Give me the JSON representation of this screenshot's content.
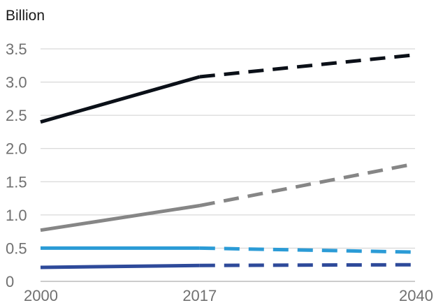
{
  "chart_data": {
    "type": "line",
    "unit_label": "Billion",
    "x_ticks": [
      "2000",
      "2017",
      "2040"
    ],
    "y_ticks": [
      "0",
      "0.5",
      "1.0",
      "1.5",
      "2.0",
      "2.5",
      "3.0",
      "3.5"
    ],
    "xlim": [
      2000,
      2040
    ],
    "ylim": [
      0,
      3.5
    ],
    "grid": "horizontal",
    "historical_end_x": 2017,
    "projection_style": "dashed",
    "series": [
      {
        "color": "#0b1018",
        "values": [
          [
            2000,
            2.4
          ],
          [
            2017,
            3.08
          ],
          [
            2040,
            3.41
          ]
        ]
      },
      {
        "color": "#868686",
        "values": [
          [
            2000,
            0.77
          ],
          [
            2017,
            1.14
          ],
          [
            2040,
            1.77
          ]
        ]
      },
      {
        "color": "#2b9bd6",
        "values": [
          [
            2000,
            0.5
          ],
          [
            2017,
            0.5
          ],
          [
            2040,
            0.44
          ]
        ]
      },
      {
        "color": "#2e4a9a",
        "values": [
          [
            2000,
            0.21
          ],
          [
            2017,
            0.24
          ],
          [
            2040,
            0.25
          ]
        ]
      }
    ]
  }
}
